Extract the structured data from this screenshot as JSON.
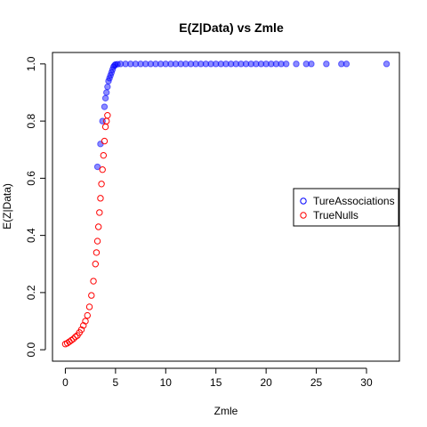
{
  "chart_data": {
    "type": "scatter",
    "title": "E(Z|Data) vs Zmle",
    "xlabel": "Zmle",
    "ylabel": "E(Z|Data)",
    "xlim": [
      -1.28,
      33.28
    ],
    "ylim": [
      -0.04,
      1.04
    ],
    "x_ticks": [
      0,
      5,
      10,
      15,
      20,
      25,
      30
    ],
    "x_tick_labels": [
      "0",
      "5",
      "10",
      "15",
      "20",
      "25",
      "30"
    ],
    "y_ticks": [
      0.0,
      0.2,
      0.4,
      0.6,
      0.8,
      1.0
    ],
    "y_tick_labels": [
      "0.0",
      "0.2",
      "0.4",
      "0.6",
      "0.8",
      "1.0"
    ],
    "grid": false,
    "legend_position": "right",
    "series": [
      {
        "name": "TureAssociations",
        "color": "#0000ff",
        "x": [
          3.2,
          3.5,
          3.7,
          3.9,
          4.0,
          4.1,
          4.2,
          4.3,
          4.4,
          4.5,
          4.6,
          4.7,
          4.8,
          4.9,
          5.0,
          5.2,
          5.5,
          6.0,
          6.5,
          7.0,
          7.5,
          8.0,
          8.5,
          9.0,
          9.5,
          10.0,
          10.5,
          11.0,
          11.5,
          12.0,
          12.5,
          13.0,
          13.5,
          14.0,
          14.5,
          15.0,
          15.5,
          16.0,
          16.5,
          17.0,
          17.5,
          18.0,
          18.5,
          19.0,
          19.5,
          20.0,
          20.5,
          21.0,
          21.5,
          22.0,
          23.0,
          24.0,
          24.5,
          26.0,
          27.5,
          28.0,
          32.0
        ],
        "y": [
          0.64,
          0.72,
          0.8,
          0.85,
          0.88,
          0.9,
          0.92,
          0.94,
          0.95,
          0.96,
          0.97,
          0.98,
          0.99,
          0.995,
          0.998,
          0.999,
          1.0,
          1.0,
          1.0,
          1.0,
          1.0,
          1.0,
          1.0,
          1.0,
          1.0,
          1.0,
          1.0,
          1.0,
          1.0,
          1.0,
          1.0,
          1.0,
          1.0,
          1.0,
          1.0,
          1.0,
          1.0,
          1.0,
          1.0,
          1.0,
          1.0,
          1.0,
          1.0,
          1.0,
          1.0,
          1.0,
          1.0,
          1.0,
          1.0,
          1.0,
          1.0,
          1.0,
          1.0,
          1.0,
          1.0,
          1.0,
          1.0
        ]
      },
      {
        "name": "TrueNulls",
        "color": "#ff0000",
        "x": [
          0.0,
          0.2,
          0.4,
          0.6,
          0.8,
          1.0,
          1.2,
          1.4,
          1.6,
          1.8,
          2.0,
          2.2,
          2.4,
          2.6,
          2.8,
          3.0,
          3.1,
          3.2,
          3.3,
          3.4,
          3.5,
          3.6,
          3.7,
          3.8,
          3.9,
          4.0,
          4.1,
          4.2
        ],
        "y": [
          0.02,
          0.023,
          0.028,
          0.033,
          0.038,
          0.045,
          0.05,
          0.06,
          0.07,
          0.085,
          0.1,
          0.12,
          0.15,
          0.19,
          0.24,
          0.3,
          0.34,
          0.38,
          0.43,
          0.48,
          0.53,
          0.58,
          0.63,
          0.68,
          0.73,
          0.78,
          0.8,
          0.82
        ]
      }
    ]
  }
}
